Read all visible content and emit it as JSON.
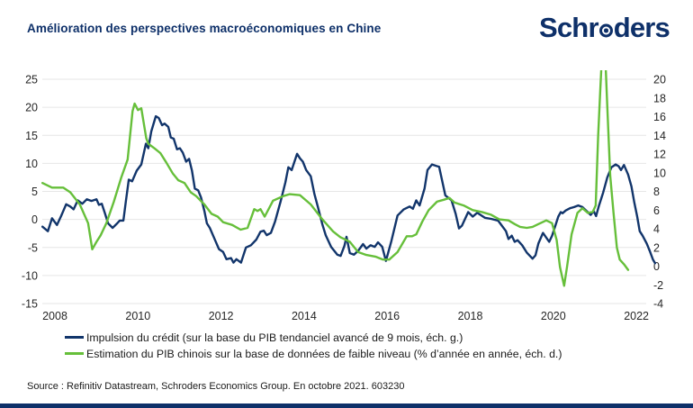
{
  "header": {
    "title": "Amélioration des perspectives macroéconomiques en Chine",
    "logo": {
      "text": "Schroders",
      "part1": "Schr",
      "part2": "ders"
    }
  },
  "source_line": "Source : Refinitiv Datastream, Schroders Economics Group. En octobre 2021. 603230",
  "colors": {
    "brand_navy": "#0e3069",
    "line_navy": "#12356b",
    "line_green": "#66bf3a",
    "grid": "#e6e6e6",
    "axis_text": "#262626"
  },
  "chart_data": {
    "type": "line",
    "title": "Amélioration des perspectives macroéconomiques en Chine",
    "grid": "horizontal",
    "legend_position": "bottom",
    "x_ticks": [
      2008,
      2010,
      2012,
      2014,
      2016,
      2018,
      2020,
      2022
    ],
    "x_range": [
      2007.7,
      2022.5
    ],
    "left_axis": {
      "ticks": [
        25,
        20,
        15,
        10,
        5,
        0,
        -5,
        -10,
        -15
      ],
      "range": [
        -15,
        25
      ]
    },
    "right_axis": {
      "ticks": [
        20,
        18,
        16,
        14,
        12,
        10,
        8,
        6,
        4,
        2,
        0,
        -2,
        -4
      ],
      "range": [
        -4,
        20
      ]
    },
    "series": [
      {
        "name": "Impulsion du crédit (sur la base du PIB tendanciel avancé de 9 mois, éch. g.)",
        "axis": "left",
        "color": "#12356b",
        "points": [
          [
            2007.7,
            -1.3
          ],
          [
            2007.83,
            -2.1
          ],
          [
            2007.93,
            0.2
          ],
          [
            2008.05,
            -1.0
          ],
          [
            2008.15,
            0.6
          ],
          [
            2008.27,
            2.7
          ],
          [
            2008.37,
            2.3
          ],
          [
            2008.45,
            1.8
          ],
          [
            2008.55,
            3.4
          ],
          [
            2008.66,
            2.8
          ],
          [
            2008.77,
            3.6
          ],
          [
            2008.88,
            3.3
          ],
          [
            2009.0,
            3.6
          ],
          [
            2009.06,
            2.6
          ],
          [
            2009.13,
            2.8
          ],
          [
            2009.2,
            1.2
          ],
          [
            2009.28,
            -0.7
          ],
          [
            2009.39,
            -1.5
          ],
          [
            2009.5,
            -0.7
          ],
          [
            2009.56,
            -0.2
          ],
          [
            2009.65,
            -0.2
          ],
          [
            2009.71,
            3.3
          ],
          [
            2009.78,
            7.1
          ],
          [
            2009.86,
            6.8
          ],
          [
            2009.97,
            8.7
          ],
          [
            2010.08,
            9.8
          ],
          [
            2010.19,
            13.5
          ],
          [
            2010.25,
            12.7
          ],
          [
            2010.32,
            15.7
          ],
          [
            2010.43,
            18.4
          ],
          [
            2010.5,
            18.1
          ],
          [
            2010.58,
            16.8
          ],
          [
            2010.64,
            17.1
          ],
          [
            2010.73,
            16.5
          ],
          [
            2010.79,
            14.6
          ],
          [
            2010.86,
            14.4
          ],
          [
            2010.94,
            12.5
          ],
          [
            2011.01,
            12.7
          ],
          [
            2011.08,
            11.9
          ],
          [
            2011.16,
            10.3
          ],
          [
            2011.23,
            10.8
          ],
          [
            2011.3,
            8.7
          ],
          [
            2011.37,
            5.5
          ],
          [
            2011.45,
            5.2
          ],
          [
            2011.52,
            3.9
          ],
          [
            2011.6,
            1.5
          ],
          [
            2011.66,
            -0.7
          ],
          [
            2011.73,
            -1.5
          ],
          [
            2011.84,
            -3.4
          ],
          [
            2011.95,
            -5.3
          ],
          [
            2012.05,
            -5.8
          ],
          [
            2012.13,
            -7.1
          ],
          [
            2012.24,
            -6.9
          ],
          [
            2012.3,
            -7.7
          ],
          [
            2012.37,
            -7.1
          ],
          [
            2012.48,
            -7.7
          ],
          [
            2012.6,
            -5.0
          ],
          [
            2012.72,
            -4.6
          ],
          [
            2012.85,
            -3.6
          ],
          [
            2012.95,
            -2.2
          ],
          [
            2013.03,
            -2.0
          ],
          [
            2013.1,
            -2.8
          ],
          [
            2013.2,
            -2.4
          ],
          [
            2013.3,
            -0.4
          ],
          [
            2013.44,
            3.4
          ],
          [
            2013.55,
            6.6
          ],
          [
            2013.62,
            9.3
          ],
          [
            2013.7,
            8.8
          ],
          [
            2013.83,
            11.7
          ],
          [
            2013.9,
            10.9
          ],
          [
            2013.97,
            10.3
          ],
          [
            2014.05,
            8.8
          ],
          [
            2014.16,
            7.7
          ],
          [
            2014.25,
            4.5
          ],
          [
            2014.33,
            2.3
          ],
          [
            2014.44,
            -0.9
          ],
          [
            2014.52,
            -2.8
          ],
          [
            2014.65,
            -4.9
          ],
          [
            2014.8,
            -6.3
          ],
          [
            2014.88,
            -6.5
          ],
          [
            2014.97,
            -4.7
          ],
          [
            2015.02,
            -3.1
          ],
          [
            2015.1,
            -6.0
          ],
          [
            2015.2,
            -6.3
          ],
          [
            2015.3,
            -5.6
          ],
          [
            2015.42,
            -4.4
          ],
          [
            2015.5,
            -5.2
          ],
          [
            2015.6,
            -4.6
          ],
          [
            2015.7,
            -4.9
          ],
          [
            2015.78,
            -4.1
          ],
          [
            2015.88,
            -4.9
          ],
          [
            2015.97,
            -7.4
          ],
          [
            2016.1,
            -3.9
          ],
          [
            2016.25,
            0.7
          ],
          [
            2016.4,
            1.8
          ],
          [
            2016.54,
            2.3
          ],
          [
            2016.62,
            1.9
          ],
          [
            2016.7,
            3.4
          ],
          [
            2016.78,
            2.5
          ],
          [
            2016.9,
            5.5
          ],
          [
            2016.97,
            8.8
          ],
          [
            2017.08,
            9.8
          ],
          [
            2017.2,
            9.5
          ],
          [
            2017.25,
            9.4
          ],
          [
            2017.4,
            4.3
          ],
          [
            2017.55,
            3.4
          ],
          [
            2017.65,
            1.0
          ],
          [
            2017.73,
            -1.6
          ],
          [
            2017.8,
            -1.1
          ],
          [
            2017.95,
            1.3
          ],
          [
            2018.06,
            0.5
          ],
          [
            2018.17,
            1.2
          ],
          [
            2018.35,
            0.3
          ],
          [
            2018.5,
            0.1
          ],
          [
            2018.67,
            -0.2
          ],
          [
            2018.86,
            -2.1
          ],
          [
            2018.92,
            -3.5
          ],
          [
            2019.0,
            -2.9
          ],
          [
            2019.07,
            -4.0
          ],
          [
            2019.14,
            -3.7
          ],
          [
            2019.25,
            -4.6
          ],
          [
            2019.36,
            -5.9
          ],
          [
            2019.5,
            -7.0
          ],
          [
            2019.57,
            -6.4
          ],
          [
            2019.64,
            -4.3
          ],
          [
            2019.75,
            -2.4
          ],
          [
            2019.9,
            -4.0
          ],
          [
            2019.97,
            -2.9
          ],
          [
            2020.05,
            -1.1
          ],
          [
            2020.12,
            0.5
          ],
          [
            2020.18,
            1.3
          ],
          [
            2020.22,
            1.1
          ],
          [
            2020.3,
            1.6
          ],
          [
            2020.4,
            2.0
          ],
          [
            2020.5,
            2.2
          ],
          [
            2020.6,
            2.5
          ],
          [
            2020.7,
            2.2
          ],
          [
            2020.8,
            1.5
          ],
          [
            2020.9,
            0.8
          ],
          [
            2020.97,
            1.5
          ],
          [
            2021.03,
            0.6
          ],
          [
            2021.1,
            2.5
          ],
          [
            2021.2,
            4.8
          ],
          [
            2021.3,
            7.5
          ],
          [
            2021.4,
            9.3
          ],
          [
            2021.5,
            9.8
          ],
          [
            2021.57,
            9.5
          ],
          [
            2021.63,
            8.8
          ],
          [
            2021.7,
            9.7
          ],
          [
            2021.8,
            8.0
          ],
          [
            2021.88,
            5.9
          ],
          [
            2021.95,
            3.0
          ],
          [
            2022.02,
            0.5
          ],
          [
            2022.08,
            -2.1
          ],
          [
            2022.15,
            -2.9
          ],
          [
            2022.25,
            -4.3
          ],
          [
            2022.32,
            -5.6
          ],
          [
            2022.4,
            -7.2
          ],
          [
            2022.45,
            -7.8
          ]
        ]
      },
      {
        "name": "Estimation du PIB chinois sur la base de données de faible niveau (% d’année en année, éch. d.)",
        "axis": "right",
        "color": "#66bf3a",
        "points": [
          [
            2007.7,
            8.9
          ],
          [
            2007.93,
            8.4
          ],
          [
            2008.2,
            8.4
          ],
          [
            2008.37,
            7.9
          ],
          [
            2008.6,
            6.6
          ],
          [
            2008.8,
            4.6
          ],
          [
            2008.9,
            1.8
          ],
          [
            2009.0,
            2.6
          ],
          [
            2009.1,
            3.3
          ],
          [
            2009.24,
            4.6
          ],
          [
            2009.42,
            6.9
          ],
          [
            2009.6,
            9.5
          ],
          [
            2009.75,
            11.4
          ],
          [
            2009.87,
            16.6
          ],
          [
            2009.92,
            17.4
          ],
          [
            2010.0,
            16.7
          ],
          [
            2010.08,
            16.9
          ],
          [
            2010.2,
            13.7
          ],
          [
            2010.25,
            13.1
          ],
          [
            2010.4,
            12.6
          ],
          [
            2010.54,
            12.1
          ],
          [
            2010.68,
            11.1
          ],
          [
            2010.84,
            9.9
          ],
          [
            2010.97,
            9.2
          ],
          [
            2011.12,
            8.9
          ],
          [
            2011.27,
            7.9
          ],
          [
            2011.4,
            7.5
          ],
          [
            2011.6,
            6.6
          ],
          [
            2011.77,
            5.6
          ],
          [
            2011.92,
            5.3
          ],
          [
            2012.05,
            4.7
          ],
          [
            2012.27,
            4.4
          ],
          [
            2012.47,
            3.9
          ],
          [
            2012.64,
            4.1
          ],
          [
            2012.8,
            6.1
          ],
          [
            2012.88,
            5.9
          ],
          [
            2012.95,
            6.1
          ],
          [
            2013.05,
            5.3
          ],
          [
            2013.25,
            7.0
          ],
          [
            2013.5,
            7.5
          ],
          [
            2013.65,
            7.7
          ],
          [
            2013.9,
            7.6
          ],
          [
            2014.16,
            6.6
          ],
          [
            2014.44,
            5.0
          ],
          [
            2014.7,
            3.7
          ],
          [
            2014.87,
            3.1
          ],
          [
            2015.1,
            2.6
          ],
          [
            2015.3,
            1.5
          ],
          [
            2015.5,
            1.2
          ],
          [
            2015.73,
            1.0
          ],
          [
            2015.9,
            0.7
          ],
          [
            2016.05,
            0.7
          ],
          [
            2016.25,
            1.5
          ],
          [
            2016.47,
            3.2
          ],
          [
            2016.6,
            3.2
          ],
          [
            2016.7,
            3.4
          ],
          [
            2016.85,
            4.8
          ],
          [
            2017.0,
            6.0
          ],
          [
            2017.2,
            6.9
          ],
          [
            2017.36,
            7.1
          ],
          [
            2017.5,
            7.3
          ],
          [
            2017.62,
            6.8
          ],
          [
            2017.84,
            6.5
          ],
          [
            2018.06,
            6.0
          ],
          [
            2018.27,
            5.8
          ],
          [
            2018.5,
            5.5
          ],
          [
            2018.7,
            5.0
          ],
          [
            2018.92,
            4.9
          ],
          [
            2019.07,
            4.5
          ],
          [
            2019.2,
            4.2
          ],
          [
            2019.36,
            4.1
          ],
          [
            2019.5,
            4.2
          ],
          [
            2019.64,
            4.5
          ],
          [
            2019.83,
            4.9
          ],
          [
            2019.97,
            4.6
          ],
          [
            2020.08,
            2.8
          ],
          [
            2020.16,
            -0.1
          ],
          [
            2020.26,
            -2.1
          ],
          [
            2020.33,
            -0.1
          ],
          [
            2020.44,
            3.4
          ],
          [
            2020.58,
            5.7
          ],
          [
            2020.7,
            6.2
          ],
          [
            2020.83,
            5.7
          ],
          [
            2020.95,
            5.8
          ],
          [
            2021.02,
            6.5
          ],
          [
            2021.08,
            13.9
          ],
          [
            2021.13,
            18.7
          ],
          [
            2021.17,
            22.5
          ],
          [
            2021.25,
            22.5
          ],
          [
            2021.3,
            17.0
          ],
          [
            2021.37,
            9.7
          ],
          [
            2021.45,
            5.7
          ],
          [
            2021.53,
            2.0
          ],
          [
            2021.6,
            0.7
          ],
          [
            2021.7,
            0.2
          ],
          [
            2021.8,
            -0.4
          ]
        ]
      }
    ]
  }
}
